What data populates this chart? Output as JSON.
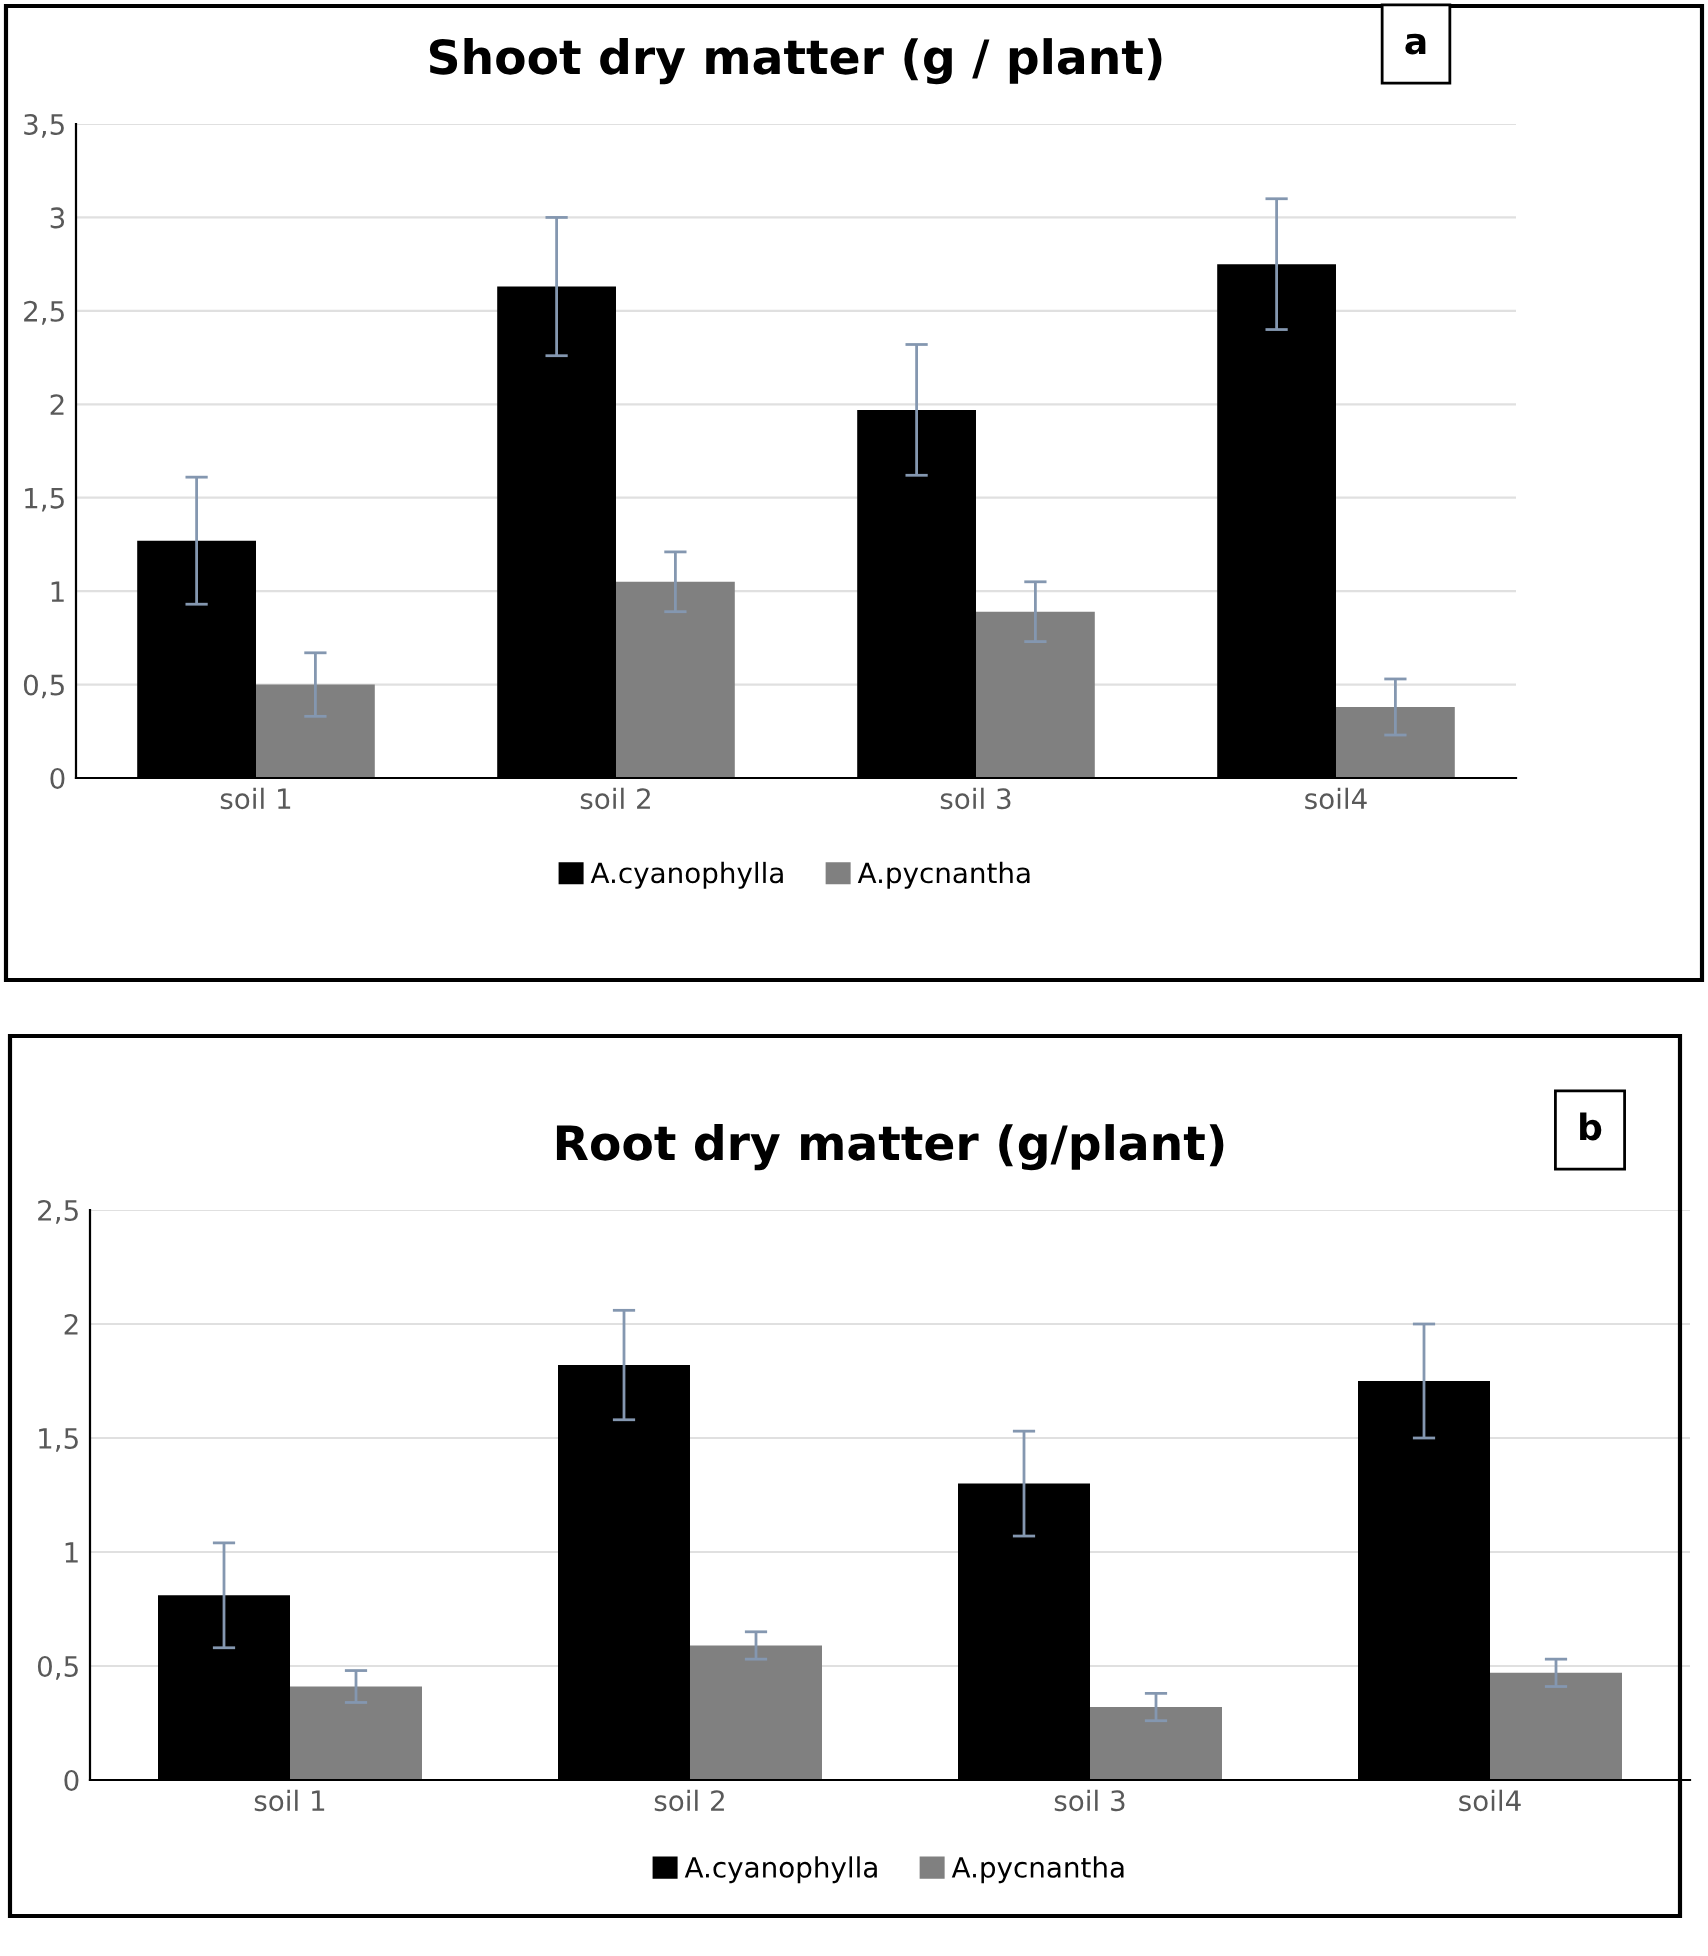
{
  "chart_data": [
    {
      "type": "bar",
      "title": "Shoot dry matter (g / plant)",
      "annotations": [
        "a"
      ],
      "categories": [
        "soil 1",
        "soil 2",
        "soil 3",
        "soil4"
      ],
      "series": [
        {
          "name": "A.cyanophylla",
          "color": "#000000",
          "values": [
            1.27,
            2.63,
            1.97,
            2.75
          ],
          "errors": [
            0.34,
            0.37,
            0.35,
            0.35
          ]
        },
        {
          "name": "A.pycnantha",
          "color": "#808080",
          "values": [
            0.5,
            1.05,
            0.89,
            0.38
          ],
          "errors": [
            0.17,
            0.16,
            0.16,
            0.15
          ]
        }
      ],
      "ylim": [
        0,
        3.5
      ],
      "yticks": [
        0,
        {
          "value": 0.5,
          "label": "0,5"
        },
        1,
        {
          "value": 1.5,
          "label": "1,5"
        },
        2,
        {
          "value": 2.5,
          "label": "2,5"
        },
        3,
        {
          "value": 3.5,
          "label": "3,5"
        }
      ],
      "grid": "y",
      "legend": "bottom"
    },
    {
      "type": "bar",
      "title": "Root dry matter (g/plant)",
      "annotations": [
        "b"
      ],
      "categories": [
        "soil 1",
        "soil 2",
        "soil 3",
        "soil4"
      ],
      "series": [
        {
          "name": "A.cyanophylla",
          "color": "#000000",
          "values": [
            0.81,
            1.82,
            1.3,
            1.75
          ],
          "errors": [
            0.23,
            0.24,
            0.23,
            0.25
          ]
        },
        {
          "name": "A.pycnantha",
          "color": "#808080",
          "values": [
            0.41,
            0.59,
            0.32,
            0.47
          ],
          "errors": [
            0.07,
            0.06,
            0.06,
            0.06
          ]
        }
      ],
      "ylim": [
        0,
        2.5
      ],
      "yticks": [
        0,
        {
          "value": 0.5,
          "label": "0,5"
        },
        1,
        {
          "value": 1.5,
          "label": "1,5"
        },
        2,
        {
          "value": 2.5,
          "label": "2,5"
        }
      ],
      "grid": "y",
      "legend": "bottom"
    }
  ]
}
